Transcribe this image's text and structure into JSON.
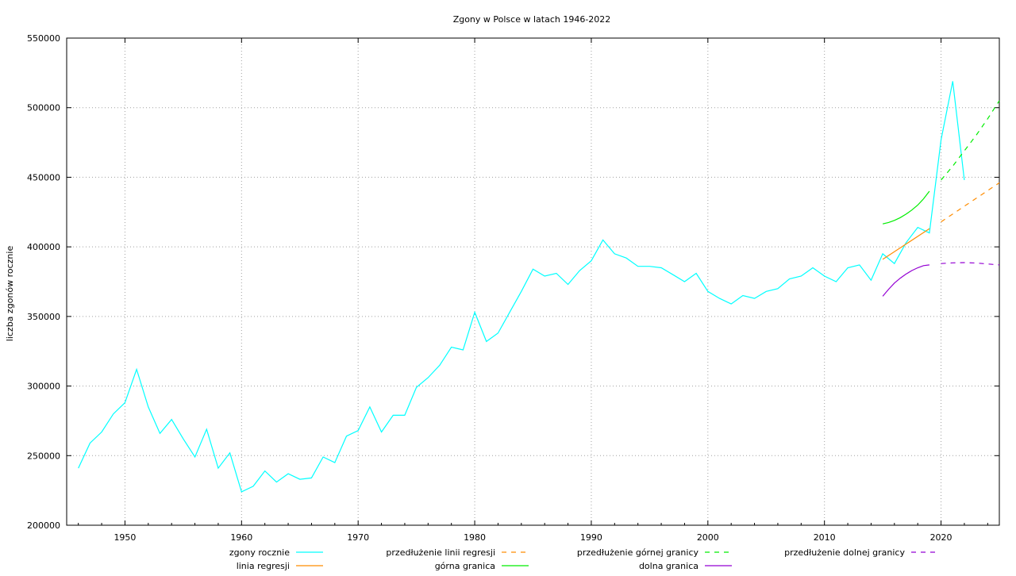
{
  "chart_data": {
    "type": "line",
    "title": "Zgony w Polsce w latach 1946-2022",
    "xlabel": "",
    "ylabel": "liczba zgonów rocznie",
    "xlim": [
      1945,
      2025
    ],
    "ylim": [
      200000,
      550000
    ],
    "x_ticks": [
      1950,
      1960,
      1970,
      1980,
      1990,
      2000,
      2010,
      2020
    ],
    "y_ticks": [
      200000,
      250000,
      300000,
      350000,
      400000,
      450000,
      500000,
      550000
    ],
    "grid": true,
    "legend_position": "bottom",
    "series": [
      {
        "name": "zgony rocznie",
        "color": "#00ffff",
        "dash": "solid",
        "x": [
          1946,
          1947,
          1948,
          1949,
          1950,
          1951,
          1952,
          1953,
          1954,
          1955,
          1956,
          1957,
          1958,
          1959,
          1960,
          1961,
          1962,
          1963,
          1964,
          1965,
          1966,
          1967,
          1968,
          1969,
          1970,
          1971,
          1972,
          1973,
          1974,
          1975,
          1976,
          1977,
          1978,
          1979,
          1980,
          1981,
          1982,
          1983,
          1984,
          1985,
          1986,
          1987,
          1988,
          1989,
          1990,
          1991,
          1992,
          1993,
          1994,
          1995,
          1996,
          1997,
          1998,
          1999,
          2000,
          2001,
          2002,
          2003,
          2004,
          2005,
          2006,
          2007,
          2008,
          2009,
          2010,
          2011,
          2012,
          2013,
          2014,
          2015,
          2016,
          2017,
          2018,
          2019,
          2020,
          2021,
          2022
        ],
        "y": [
          241000,
          259000,
          267000,
          280000,
          288000,
          312000,
          285000,
          266000,
          276000,
          262000,
          249000,
          269000,
          241000,
          252000,
          224000,
          228000,
          239000,
          231000,
          237000,
          233000,
          234000,
          249000,
          245000,
          264000,
          268000,
          285000,
          267000,
          279000,
          279000,
          299000,
          306000,
          315000,
          328000,
          326000,
          353000,
          332000,
          338000,
          353000,
          368000,
          384000,
          379000,
          381000,
          373000,
          383000,
          390000,
          405000,
          395000,
          392000,
          386000,
          386000,
          385000,
          380000,
          375000,
          381000,
          368000,
          363000,
          359000,
          365000,
          363000,
          368000,
          370000,
          377000,
          379000,
          385000,
          379000,
          375000,
          385000,
          387000,
          376000,
          395000,
          388000,
          403000,
          414000,
          410000,
          477000,
          519000,
          448000
        ]
      },
      {
        "name": "linia regresji",
        "color": "#ff8c00",
        "dash": "solid",
        "x": [
          2015,
          2019
        ],
        "y": [
          391000,
          413000
        ]
      },
      {
        "name": "górna granica",
        "color": "#00ee00",
        "dash": "solid",
        "x": [
          2015,
          2015.5,
          2016,
          2016.5,
          2017,
          2017.5,
          2018,
          2018.5,
          2019
        ],
        "y": [
          416500,
          417500,
          419000,
          421000,
          423500,
          426500,
          430000,
          434500,
          440000
        ]
      },
      {
        "name": "dolna granica",
        "color": "#9400d3",
        "dash": "solid",
        "x": [
          2015,
          2015.5,
          2016,
          2016.5,
          2017,
          2017.5,
          2018,
          2018.5,
          2019
        ],
        "y": [
          364500,
          369500,
          374000,
          377500,
          380500,
          383000,
          385000,
          386500,
          387000
        ]
      },
      {
        "name": "przedłużenie linii regresji",
        "color": "#ff8c00",
        "dash": "dashed",
        "x": [
          2020,
          2025
        ],
        "y": [
          418000,
          446000
        ]
      },
      {
        "name": "przedłużenie górnej granicy",
        "color": "#00ee00",
        "dash": "dashed",
        "x": [
          2020,
          2021,
          2022,
          2023,
          2024,
          2025
        ],
        "y": [
          448000,
          458000,
          469000,
          480000,
          492000,
          505000
        ]
      },
      {
        "name": "przedłużenie dolnej granicy",
        "color": "#9400d3",
        "dash": "dashed",
        "x": [
          2020,
          2021,
          2022,
          2023,
          2024,
          2025
        ],
        "y": [
          388000,
          388500,
          388700,
          388400,
          387700,
          387000
        ]
      }
    ],
    "legend_order": [
      0,
      4,
      5,
      6,
      1,
      2,
      3
    ]
  }
}
